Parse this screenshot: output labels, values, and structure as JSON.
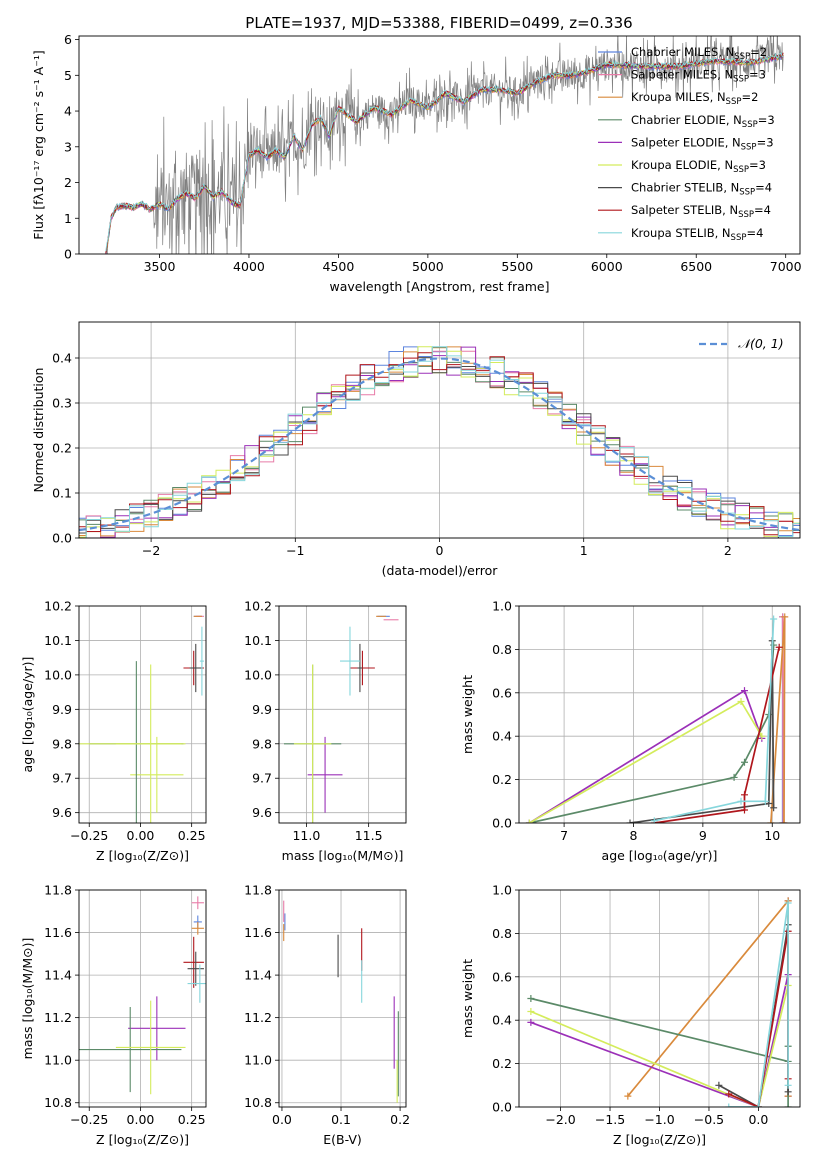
{
  "figure_title": "PLATE=1937, MJD=53388, FIBERID=0499, z=0.336",
  "series": [
    {
      "name": "Chabrier MILES",
      "nssp": "2",
      "color": "#5d85de"
    },
    {
      "name": "Salpeter MILES",
      "nssp": "3",
      "color": "#e87ca8"
    },
    {
      "name": "Kroupa MILES",
      "nssp": "2",
      "color": "#d98a3c"
    },
    {
      "name": "Chabrier ELODIE",
      "nssp": "3",
      "color": "#5b8a68"
    },
    {
      "name": "Salpeter ELODIE",
      "nssp": "3",
      "color": "#9b30b8"
    },
    {
      "name": "Kroupa ELODIE",
      "nssp": "3",
      "color": "#d4ec5c"
    },
    {
      "name": "Chabrier STELIB",
      "nssp": "4",
      "color": "#4a4a4a"
    },
    {
      "name": "Salpeter STELIB",
      "nssp": "4",
      "color": "#b0161c"
    },
    {
      "name": "Kroupa STELIB",
      "nssp": "4",
      "color": "#86d6dc"
    }
  ],
  "chart_data": [
    {
      "type": "line",
      "id": "spectrum",
      "title": "PLATE=1937, MJD=53388, FIBERID=0499, z=0.336",
      "xlabel": "wavelength [Angstrom, rest frame]",
      "ylabel": "Flux [fλ10⁻¹⁷ erg cm⁻² s⁻¹ A⁻¹]",
      "xlim": [
        3050,
        7080
      ],
      "ylim": [
        0,
        6.1
      ],
      "xticks": [
        3500,
        4000,
        4500,
        5000,
        5500,
        6000,
        6500,
        7000
      ],
      "yticks": [
        0,
        1,
        2,
        3,
        4,
        5,
        6
      ],
      "data_color": "#808080",
      "continuum": {
        "x": [
          3200,
          3230,
          3260,
          3300,
          3350,
          3400,
          3450,
          3500,
          3550,
          3600,
          3650,
          3700,
          3750,
          3800,
          3850,
          3900,
          3950,
          4000,
          4050,
          4100,
          4150,
          4200,
          4250,
          4300,
          4350,
          4400,
          4450,
          4500,
          4600,
          4700,
          4800,
          4900,
          5000,
          5100,
          5200,
          5300,
          5400,
          5500,
          5600,
          5700,
          5800,
          5900,
          6000,
          6200,
          6400,
          6600,
          6800,
          6990
        ],
        "y": [
          0,
          1.0,
          1.3,
          1.35,
          1.3,
          1.4,
          1.25,
          1.4,
          1.25,
          1.55,
          1.7,
          1.55,
          1.9,
          1.6,
          1.75,
          1.45,
          1.35,
          2.75,
          2.9,
          2.7,
          2.9,
          2.7,
          3.3,
          2.9,
          3.6,
          3.8,
          3.3,
          4.1,
          3.7,
          4.1,
          3.9,
          4.3,
          4.1,
          4.5,
          4.25,
          4.6,
          4.6,
          4.5,
          4.8,
          5.0,
          5.0,
          5.1,
          5.3,
          5.25,
          5.25,
          5.4,
          5.35,
          5.55
        ]
      }
    },
    {
      "type": "histogram",
      "id": "residuals",
      "xlabel": "(data-model)/error",
      "ylabel": "Normed distribution",
      "xlim": [
        -2.5,
        2.5
      ],
      "ylim": [
        0,
        0.48
      ],
      "xticks": [
        -2,
        -1,
        0,
        1,
        2
      ],
      "yticks": [
        0,
        0.1,
        0.2,
        0.3,
        0.4
      ],
      "legend": "$\\mathcal{N}(0,1)$",
      "reference": {
        "mean": 0,
        "sigma": 1
      }
    },
    {
      "type": "scatter",
      "id": "age-vs-Z",
      "xlabel": "Z [log₁₀(Z/Z⊙)]",
      "ylabel": "age  [log₁₀(age/yr)]",
      "xlim": [
        -0.3,
        0.32
      ],
      "ylim": [
        9.57,
        10.2
      ],
      "xticks": [
        -0.25,
        0,
        0.25
      ],
      "yticks": [
        9.6,
        9.7,
        9.8,
        9.9,
        10.0,
        10.1,
        10.2
      ],
      "points": [
        {
          "s": 5,
          "x": 0.08,
          "y": 9.71,
          "xerr": 0.13,
          "yerr": 0.0
        },
        {
          "s": 5,
          "x": 0.08,
          "y": 9.71,
          "xerr": 0.0,
          "yerr": 0.11
        },
        {
          "s": 3,
          "x": -0.02,
          "y": 9.8,
          "xerr": 0.23,
          "yerr": 0.24
        },
        {
          "s": 5,
          "x": -0.05,
          "y": 9.8,
          "xerr": 0.25,
          "yerr": 0.0
        },
        {
          "s": 5,
          "x": 0.05,
          "y": 9.8,
          "xerr": 0.17,
          "yerr": 0.23
        },
        {
          "s": 7,
          "x": 0.26,
          "y": 10.02,
          "xerr": 0.05,
          "yerr": 0.05
        },
        {
          "s": 6,
          "x": 0.27,
          "y": 10.02,
          "xerr": 0.03,
          "yerr": 0.07
        },
        {
          "s": 8,
          "x": 0.3,
          "y": 10.04,
          "xerr": 0.01,
          "yerr": 0.1
        },
        {
          "s": 0,
          "x": 0.28,
          "y": 10.17,
          "xerr": 0.02,
          "yerr": 0.0
        },
        {
          "s": 1,
          "x": 0.29,
          "y": 10.17,
          "xerr": 0.02,
          "yerr": 0.0
        },
        {
          "s": 2,
          "x": 0.28,
          "y": 10.17,
          "xerr": 0.02,
          "yerr": 0.0
        }
      ]
    },
    {
      "type": "scatter",
      "id": "age-vs-mass",
      "xlabel": "mass [log₁₀(M/M⊙)]",
      "ylabel": "",
      "xlim": [
        10.78,
        11.8
      ],
      "ylim": [
        9.57,
        10.2
      ],
      "xticks": [
        11.0,
        11.5
      ],
      "yticks": [
        9.6,
        9.7,
        9.8,
        9.9,
        10.0,
        10.1,
        10.2
      ],
      "points": [
        {
          "s": 4,
          "x": 11.15,
          "y": 9.71,
          "xerr": 0.14,
          "yerr": 0.11
        },
        {
          "s": 3,
          "x": 11.05,
          "y": 9.8,
          "xerr": 0.23,
          "yerr": 0.23
        },
        {
          "s": 5,
          "x": 11.05,
          "y": 9.8,
          "xerr": 0.15,
          "yerr": 0.23
        },
        {
          "s": 7,
          "x": 11.45,
          "y": 10.02,
          "xerr": 0.1,
          "yerr": 0.05
        },
        {
          "s": 6,
          "x": 11.43,
          "y": 10.02,
          "xerr": 0.02,
          "yerr": 0.07
        },
        {
          "s": 8,
          "x": 11.35,
          "y": 10.04,
          "xerr": 0.08,
          "yerr": 0.1
        },
        {
          "s": 0,
          "x": 11.62,
          "y": 10.17,
          "xerr": 0.05,
          "yerr": 0.0
        },
        {
          "s": 1,
          "x": 11.68,
          "y": 10.16,
          "xerr": 0.06,
          "yerr": 0.0
        },
        {
          "s": 2,
          "x": 11.6,
          "y": 10.17,
          "xerr": 0.04,
          "yerr": 0.0
        }
      ]
    },
    {
      "type": "line",
      "id": "weight-vs-age",
      "xlabel": "age  [log₁₀(age/yr)]",
      "ylabel": "mass weight",
      "xlim": [
        6.35,
        10.4
      ],
      "ylim": [
        0,
        1.0
      ],
      "xticks": [
        7,
        8,
        9,
        10
      ],
      "yticks": [
        0.0,
        0.2,
        0.4,
        0.6,
        0.8,
        1.0
      ],
      "lines": [
        {
          "s": 0,
          "x": [
            10.15,
            10.15
          ],
          "y": [
            0.0,
            0.95
          ]
        },
        {
          "s": 1,
          "x": [
            10.16,
            10.15
          ],
          "y": [
            0.0,
            0.95
          ]
        },
        {
          "s": 2,
          "x": [
            9.98,
            10.18,
            10.17
          ],
          "y": [
            0.0,
            0.95,
            0.0
          ]
        },
        {
          "s": 3,
          "x": [
            6.5,
            9.45,
            9.6,
            9.95,
            10.02
          ],
          "y": [
            0.0,
            0.21,
            0.28,
            0.5,
            0.82
          ]
        },
        {
          "s": 4,
          "x": [
            6.5,
            9.6,
            9.85
          ],
          "y": [
            0.0,
            0.61,
            0.39
          ]
        },
        {
          "s": 5,
          "x": [
            6.5,
            9.55,
            9.85
          ],
          "y": [
            0.0,
            0.56,
            0.4
          ]
        },
        {
          "s": 6,
          "x": [
            7.95,
            9.95,
            10.0,
            10.02
          ],
          "y": [
            0.0,
            0.09,
            0.84,
            0.07
          ]
        },
        {
          "s": 7,
          "x": [
            8.3,
            9.6,
            9.6,
            10.1
          ],
          "y": [
            0.0,
            0.06,
            0.13,
            0.81
          ]
        },
        {
          "s": 8,
          "x": [
            8.3,
            9.55,
            9.9,
            10.02
          ],
          "y": [
            0.01,
            0.1,
            0.1,
            0.94
          ]
        }
      ]
    },
    {
      "type": "scatter",
      "id": "mass-vs-Z",
      "xlabel": "Z [log₁₀(Z/Z⊙)]",
      "ylabel": "mass [log₁₀(M/M⊙)]",
      "xlim": [
        -0.3,
        0.32
      ],
      "ylim": [
        10.78,
        11.8
      ],
      "xticks": [
        -0.25,
        0,
        0.25
      ],
      "yticks": [
        10.8,
        11.0,
        11.2,
        11.4,
        11.6,
        11.8
      ],
      "points": [
        {
          "s": 4,
          "x": 0.08,
          "y": 11.15,
          "xerr": 0.14,
          "yerr": 0.15
        },
        {
          "s": 3,
          "x": -0.05,
          "y": 11.05,
          "xerr": 0.25,
          "yerr": 0.2
        },
        {
          "s": 5,
          "x": 0.05,
          "y": 11.06,
          "xerr": 0.17,
          "yerr": 0.22
        },
        {
          "s": 7,
          "x": 0.26,
          "y": 11.46,
          "xerr": 0.05,
          "yerr": 0.12
        },
        {
          "s": 6,
          "x": 0.27,
          "y": 11.43,
          "xerr": 0.04,
          "yerr": 0.08
        },
        {
          "s": 8,
          "x": 0.29,
          "y": 11.36,
          "xerr": 0.06,
          "yerr": 0.09
        },
        {
          "s": 0,
          "x": 0.28,
          "y": 11.65,
          "xerr": 0.02,
          "yerr": 0.03
        },
        {
          "s": 1,
          "x": 0.28,
          "y": 11.74,
          "xerr": 0.03,
          "yerr": 0.03
        },
        {
          "s": 2,
          "x": 0.28,
          "y": 11.62,
          "xerr": 0.03,
          "yerr": 0.03
        }
      ]
    },
    {
      "type": "scatter",
      "id": "mass-vs-ebv",
      "xlabel": "E(B-V)",
      "ylabel": "",
      "xlim": [
        -0.005,
        0.21
      ],
      "ylim": [
        10.78,
        11.8
      ],
      "xticks": [
        0.0,
        0.1,
        0.2
      ],
      "yticks": [
        10.8,
        11.0,
        11.2,
        11.4,
        11.6,
        11.8
      ],
      "points": [
        {
          "s": 4,
          "x": 0.19,
          "y": 11.13,
          "xerr": 0.0,
          "yerr": 0.17
        },
        {
          "s": 3,
          "x": 0.197,
          "y": 11.03,
          "xerr": 0.0,
          "yerr": 0.2
        },
        {
          "s": 5,
          "x": 0.195,
          "y": 10.9,
          "xerr": 0.0,
          "yerr": 0.1
        },
        {
          "s": 7,
          "x": 0.135,
          "y": 11.52,
          "xerr": 0.0,
          "yerr": 0.1
        },
        {
          "s": 6,
          "x": 0.095,
          "y": 11.49,
          "xerr": 0.0,
          "yerr": 0.1
        },
        {
          "s": 8,
          "x": 0.135,
          "y": 11.37,
          "xerr": 0.0,
          "yerr": 0.1
        },
        {
          "s": 0,
          "x": 0.005,
          "y": 11.65,
          "xerr": 0.0,
          "yerr": 0.04
        },
        {
          "s": 1,
          "x": 0.003,
          "y": 11.7,
          "xerr": 0.0,
          "yerr": 0.05
        },
        {
          "s": 2,
          "x": 0.003,
          "y": 11.6,
          "xerr": 0.0,
          "yerr": 0.04
        }
      ]
    },
    {
      "type": "line",
      "id": "weight-vs-Z",
      "xlabel": "Z [log₁₀(Z/Z⊙)]",
      "ylabel": "mass weight",
      "xlim": [
        -2.42,
        0.42
      ],
      "ylim": [
        0,
        1.0
      ],
      "xticks": [
        -2.0,
        -1.5,
        -1.0,
        -0.5,
        0.0
      ],
      "yticks": [
        0.0,
        0.2,
        0.4,
        0.6,
        0.8,
        1.0
      ],
      "lines": [
        {
          "s": 0,
          "x": [
            0.3,
            0.3
          ],
          "y": [
            0.05,
            0.95
          ]
        },
        {
          "s": 1,
          "x": [
            0.3,
            0.3
          ],
          "y": [
            0.05,
            0.95
          ]
        },
        {
          "s": 2,
          "x": [
            -1.32,
            0.3,
            0.3
          ],
          "y": [
            0.05,
            0.95,
            0.05
          ]
        },
        {
          "s": 3,
          "x": [
            -2.3,
            0.3,
            0.3,
            0.3
          ],
          "y": [
            0.5,
            0.21,
            0.28,
            0.0
          ]
        },
        {
          "s": 4,
          "x": [
            -2.3,
            0.0,
            0.3
          ],
          "y": [
            0.39,
            0.0,
            0.61
          ]
        },
        {
          "s": 5,
          "x": [
            -2.3,
            0.0,
            0.3
          ],
          "y": [
            0.44,
            0.0,
            0.56
          ]
        },
        {
          "s": 6,
          "x": [
            -0.4,
            0.0,
            0.3,
            0.3
          ],
          "y": [
            0.1,
            0.0,
            0.84,
            0.07
          ]
        },
        {
          "s": 7,
          "x": [
            -0.3,
            0.0,
            0.3,
            0.3
          ],
          "y": [
            0.06,
            0.0,
            0.81,
            0.13
          ]
        },
        {
          "s": 8,
          "x": [
            -0.3,
            0.0,
            0.3,
            0.3
          ],
          "y": [
            0.0,
            0.0,
            0.94,
            0.1
          ]
        }
      ]
    }
  ]
}
